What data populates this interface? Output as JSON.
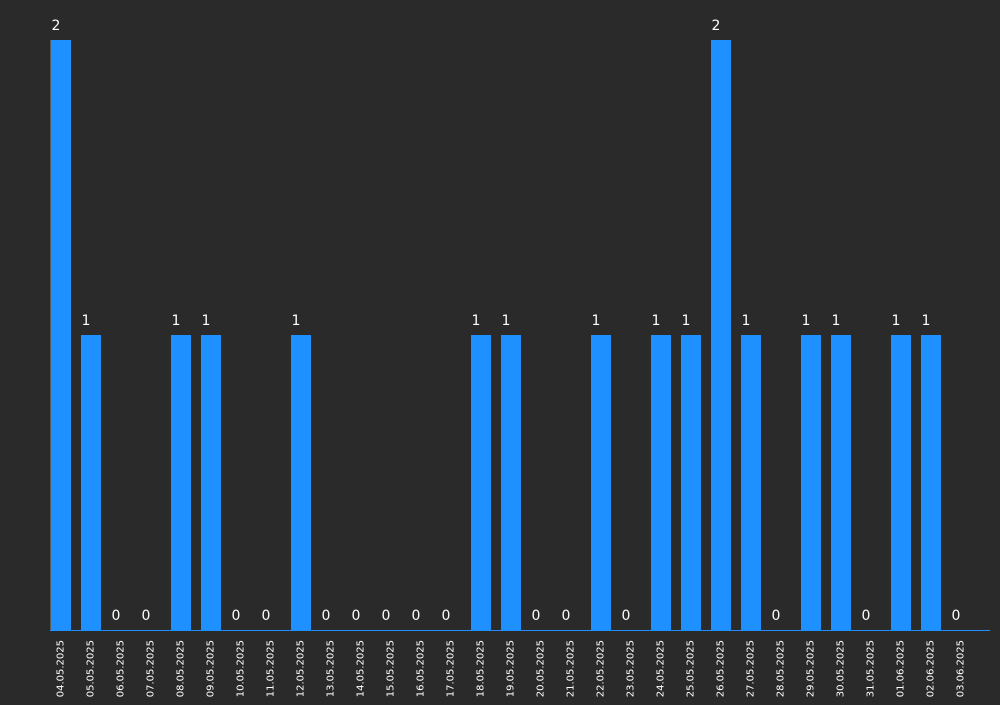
{
  "colors": {
    "background": "#2a2a2a",
    "bar": "#1e90ff",
    "axis": "#1e90ff",
    "text": "#ffffff"
  },
  "chart_data": {
    "type": "bar",
    "title": "",
    "xlabel": "",
    "ylabel": "",
    "ylim": [
      0,
      2
    ],
    "grid": false,
    "legend": "none",
    "categories": [
      "04.05.2025",
      "05.05.2025",
      "06.05.2025",
      "07.05.2025",
      "08.05.2025",
      "09.05.2025",
      "10.05.2025",
      "11.05.2025",
      "12.05.2025",
      "13.05.2025",
      "14.05.2025",
      "15.05.2025",
      "16.05.2025",
      "17.05.2025",
      "18.05.2025",
      "19.05.2025",
      "20.05.2025",
      "21.05.2025",
      "22.05.2025",
      "23.05.2025",
      "24.05.2025",
      "25.05.2025",
      "26.05.2025",
      "27.05.2025",
      "28.05.2025",
      "29.05.2025",
      "30.05.2025",
      "31.05.2025",
      "01.06.2025",
      "02.06.2025",
      "03.06.2025"
    ],
    "values": [
      2,
      1,
      0,
      0,
      1,
      1,
      0,
      0,
      1,
      0,
      0,
      0,
      0,
      0,
      1,
      1,
      0,
      0,
      1,
      0,
      1,
      1,
      2,
      1,
      0,
      1,
      1,
      0,
      1,
      1,
      0
    ]
  }
}
